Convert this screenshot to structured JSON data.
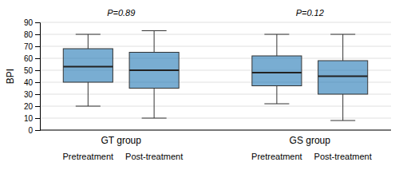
{
  "chart_data": {
    "type": "box",
    "ylabel": "BPI",
    "ylim": [
      0,
      90
    ],
    "yticks": [
      0,
      10,
      20,
      30,
      40,
      50,
      60,
      70,
      80,
      90
    ],
    "grid": true,
    "groups": [
      {
        "name": "GT group",
        "annotation": "P=0.89",
        "categories": [
          "Pretreatment",
          "Post-treatment"
        ],
        "whislo": [
          20,
          10
        ],
        "q1": [
          40,
          35
        ],
        "med": [
          53,
          50
        ],
        "q3": [
          68,
          65
        ],
        "whishi": [
          80,
          83
        ]
      },
      {
        "name": "GS group",
        "annotation": "P=0.12",
        "categories": [
          "Pretreatment",
          "Post-treatment"
        ],
        "whislo": [
          22,
          8
        ],
        "q1": [
          37,
          30
        ],
        "med": [
          48,
          45
        ],
        "q3": [
          62,
          58
        ],
        "whishi": [
          80,
          80
        ]
      }
    ]
  }
}
